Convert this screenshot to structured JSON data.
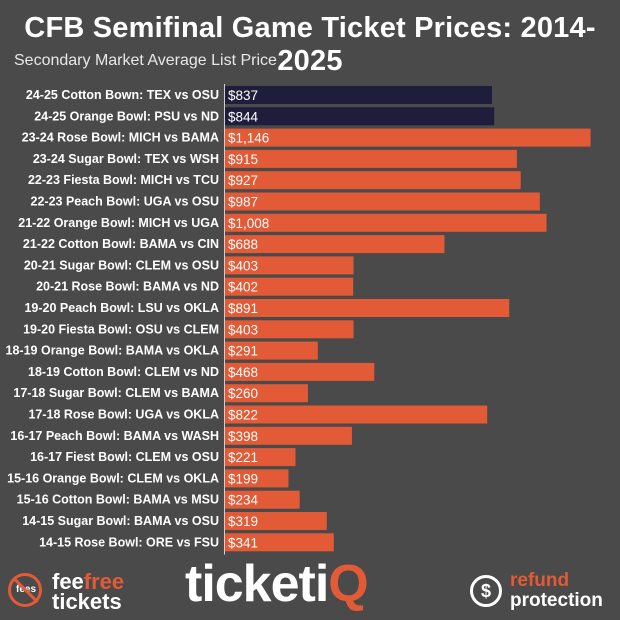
{
  "chart_data": {
    "type": "bar",
    "orientation": "horizontal",
    "title": "CFB Semifinal Game Ticket Prices: 2014-2025",
    "subtitle": "Secondary Market Average List Price",
    "xlim": [
      0,
      1250
    ],
    "x_ticks": [
      {
        "value": 0,
        "label": "0"
      },
      {
        "value": 200,
        "label": "$0.2K"
      },
      {
        "value": 400,
        "label": "$0.4K"
      },
      {
        "value": 600,
        "label": "$0.6K"
      },
      {
        "value": 800,
        "label": "$0.8K"
      },
      {
        "value": 1000,
        "label": "$1K"
      },
      {
        "value": 1200,
        "label": "$1.2K"
      }
    ],
    "grid": false,
    "categories": [
      "24-25 Cotton Bown: TEX vs OSU",
      "24-25 Orange Bowl: PSU vs ND",
      "23-24 Rose Bowl: MICH vs BAMA",
      "23-24 Sugar Bowl: TEX vs WSH",
      "22-23 Fiesta Bowl: MICH vs TCU",
      "22-23 Peach Bowl: UGA vs OSU",
      "21-22 Orange Bowl: MICH vs UGA",
      "21-22 Cotton Bowl: BAMA vs CIN",
      "20-21 Sugar Bowl: CLEM vs OSU",
      "20-21 Rose Bowl: BAMA vs ND",
      "19-20 Peach Bowl: LSU vs OKLA",
      "19-20 Fiesta Bowl: OSU vs CLEM",
      "18-19 Orange Bowl: BAMA vs OKLA",
      "18-19 Cotton Bowl: CLEM vs ND",
      "17-18 Sugar Bowl: CLEM vs BAMA",
      "17-18 Rose Bowl: UGA vs OKLA",
      "16-17 Peach Bowl: BAMA vs WASH",
      "16-17 Fiest Bowl: CLEM vs OSU",
      "15-16 Orange Bowl: CLEM vs OKLA",
      "15-16 Cotton Bowl: BAMA vs MSU",
      "14-15 Sugar Bowl: BAMA vs OSU",
      "14-15 Rose Bowl: ORE vs FSU"
    ],
    "values": [
      837,
      844,
      1146,
      915,
      927,
      987,
      1008,
      688,
      403,
      402,
      891,
      403,
      291,
      468,
      260,
      822,
      398,
      221,
      199,
      234,
      319,
      341
    ],
    "value_labels": [
      "$837",
      "$844",
      "$1,146",
      "$915",
      "$927",
      "$987",
      "$1,008",
      "$688",
      "$403",
      "$402",
      "$891",
      "$403",
      "$291",
      "$468",
      "$260",
      "$822",
      "$398",
      "$221",
      "$199",
      "$234",
      "$319",
      "$341"
    ],
    "highlight_count": 2,
    "colors": {
      "highlight": "#1e1e3c",
      "bar": "#e25a36",
      "background": "#4a4a4a",
      "text": "#ffffff"
    }
  },
  "footer": {
    "feefree": {
      "icon_text": "fees",
      "word_fee": "fee",
      "word_free": "free",
      "word_tickets": "tickets"
    },
    "ticketiq": {
      "text_main": "ticketi",
      "text_q": "Q"
    },
    "refund": {
      "icon_text": "$",
      "word1": "refund",
      "word2": "protection"
    }
  }
}
